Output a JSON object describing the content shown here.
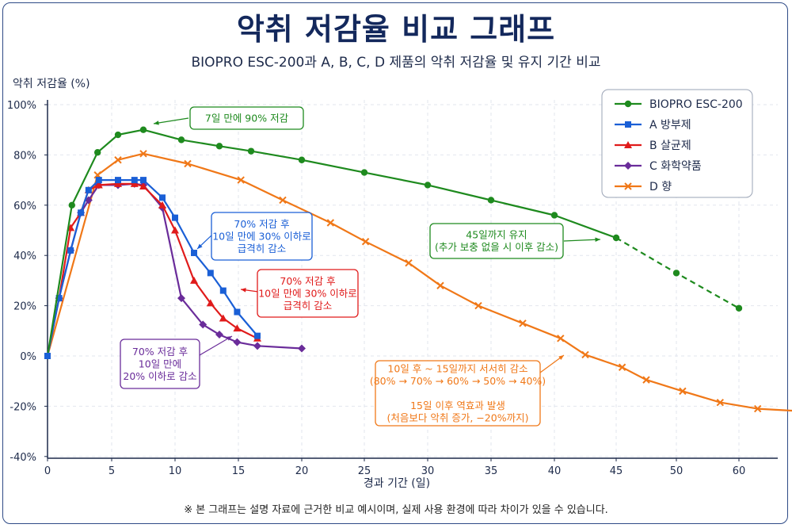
{
  "header": {
    "title": "악취 저감율 비교 그래프",
    "subtitle": "BIOPRO ESC-200과 A, B, C, D 제품의 악취 저감율 및 유지 기간 비교"
  },
  "footnote": "※ 본 그래프는 설명 자료에 근거한 비교 예시이며, 실제 사용 환경에 따라 차이가 있을 수 있습니다.",
  "chart_data": {
    "type": "line",
    "title": "악취 저감율 비교 그래프",
    "xlabel": "경과 기간 (일)",
    "ylabel": "악취 저감율 (%)",
    "xlim": [
      0,
      62
    ],
    "ylim": [
      -40,
      100
    ],
    "x_ticks": [
      "0",
      "5",
      "10",
      "15",
      "20",
      "25",
      "30",
      "35",
      "40",
      "45",
      "50",
      "60"
    ],
    "y_ticks": [
      "-40%",
      "-20%",
      "0%",
      "20%",
      "40%",
      "60%",
      "80%",
      "100%"
    ],
    "grid": true,
    "legend_position": "top-right",
    "series": [
      {
        "name": "BIOPRO ESC-200",
        "color": "#1e8a1e",
        "marker": "circle",
        "x": [
          0,
          1.9,
          3.9,
          5.5,
          7.5,
          10.5,
          13.5,
          16,
          20,
          25,
          30,
          35,
          40,
          45
        ],
        "y": [
          0,
          60,
          81,
          88,
          90,
          86,
          83.5,
          81.5,
          78,
          73,
          68,
          62,
          56,
          47
        ],
        "dashed_x": [
          45,
          50,
          55
        ],
        "dashed_y": [
          47,
          33,
          19
        ]
      },
      {
        "name": "A 방부제",
        "color": "#1a5fd6",
        "marker": "square",
        "x": [
          0,
          0.9,
          1.8,
          2.6,
          3.2,
          4,
          5.5,
          6.8,
          7.5,
          9,
          10,
          11.5,
          12.8,
          13.8,
          14.9,
          16.5
        ],
        "y": [
          0,
          23,
          42,
          57,
          66,
          70,
          70,
          70,
          70,
          63,
          55,
          41,
          33,
          26,
          17.5,
          8
        ]
      },
      {
        "name": "B 살균제",
        "color": "#e01b1b",
        "marker": "triangle",
        "x": [
          0,
          0.9,
          1.8,
          2.6,
          3.2,
          4,
          5.5,
          6.8,
          7.5,
          9,
          10,
          11.5,
          12.8,
          13.8,
          14.9,
          16.5
        ],
        "y": [
          0,
          23,
          51,
          57,
          66,
          68,
          68.5,
          68.5,
          67.5,
          60,
          50,
          30,
          21,
          15,
          11,
          7
        ]
      },
      {
        "name": "C 화학약품",
        "color": "#6a2c9a",
        "marker": "diamond",
        "x": [
          0,
          0.9,
          1.8,
          2.6,
          3.2,
          4,
          5.5,
          6.8,
          7.5,
          9,
          10.5,
          12.2,
          13.5,
          14.9,
          16.5,
          20
        ],
        "y": [
          0,
          23,
          42,
          57,
          62,
          68,
          68,
          68.5,
          68,
          59,
          23,
          12.5,
          8.5,
          5.5,
          4,
          3
        ]
      },
      {
        "name": "D 향",
        "color": "#f07818",
        "marker": "cross",
        "x": [
          0,
          3.9,
          5.5,
          7.5,
          11,
          15.2,
          18.5,
          22.3,
          25.1,
          28.5,
          31,
          34,
          37.5,
          40.5,
          42.5,
          45.5,
          47.5,
          50.5,
          53.5,
          56.5,
          60
        ],
        "y": [
          0,
          72,
          78,
          80.5,
          76.5,
          70,
          62,
          53,
          45.5,
          37,
          28,
          20,
          13,
          7,
          0.5,
          -4.5,
          -9.5,
          -14,
          -18.5,
          -21,
          -22
        ]
      }
    ],
    "annotations": [
      {
        "series": "BIOPRO ESC-200",
        "lines": [
          "7일 만에 90% 저감"
        ],
        "color": "#1e8a1e"
      },
      {
        "series": "A 방부제",
        "lines": [
          "70% 저감 후",
          "10일 만에 30% 이하로",
          "급격히 감소"
        ],
        "color": "#1a5fd6"
      },
      {
        "series": "B 살균제",
        "lines": [
          "70% 저감 후",
          "10일 만에 30% 이하로",
          "급격히 감소"
        ],
        "color": "#e01b1b"
      },
      {
        "series": "C 화학약품",
        "lines": [
          "70% 저감 후",
          "10일 만에",
          "20% 이하로 감소"
        ],
        "color": "#6a2c9a"
      },
      {
        "series": "BIOPRO ESC-200",
        "lines": [
          "45일까지 유지",
          "(추가 보충 없을 시 이후 감소)"
        ],
        "color": "#1e8a1e"
      },
      {
        "series": "D 향",
        "lines": [
          "10일 후 ~ 15일까지 서서히 감소",
          "(80% → 70% → 60% → 50% → 40%)",
          "",
          "15일 이후 역효과 발생",
          "(처음보다 악취 증가, −20%까지)"
        ],
        "color": "#f07818"
      }
    ]
  }
}
